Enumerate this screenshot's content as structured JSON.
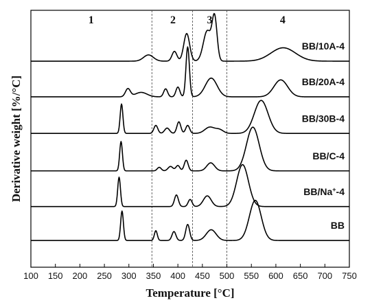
{
  "chart_data": {
    "type": "line",
    "xlabel": "Temperature [°C]",
    "ylabel": "Derivative weight [%/°C]",
    "xlim": [
      100,
      750
    ],
    "x_ticks": [
      100,
      150,
      200,
      250,
      300,
      350,
      400,
      450,
      500,
      550,
      600,
      650,
      700,
      750
    ],
    "y_ticks_shown": false,
    "grid": false,
    "legend": "none",
    "reference_lines": [
      {
        "x": 347,
        "style": "dashed"
      },
      {
        "x": 430,
        "style": "dashed"
      },
      {
        "x": 500,
        "style": "dashed"
      }
    ],
    "region_labels": [
      {
        "text": "1",
        "x": 223
      },
      {
        "text": "2",
        "x": 390
      },
      {
        "text": "3",
        "x": 465
      },
      {
        "text": "4",
        "x": 614
      }
    ],
    "series": [
      {
        "name": "BB/10A-4",
        "label_parts": [
          "BB/10A-4"
        ],
        "baseline": 11.55,
        "peaks": [
          [
            340,
            0.35,
            10
          ],
          [
            393,
            0.55,
            5
          ],
          [
            418,
            1.55,
            6
          ],
          [
            460,
            1.7,
            8
          ],
          [
            475,
            2.35,
            5
          ],
          [
            615,
            0.75,
            25
          ]
        ]
      },
      {
        "name": "BB/20A-4",
        "label_parts": [
          "BB/20A-4"
        ],
        "baseline": 9.55,
        "peaks": [
          [
            298,
            0.45,
            5
          ],
          [
            325,
            0.25,
            12
          ],
          [
            375,
            0.45,
            4
          ],
          [
            400,
            0.55,
            4
          ],
          [
            420,
            2.8,
            3.5
          ],
          [
            468,
            1.05,
            12
          ],
          [
            610,
            0.95,
            14
          ]
        ]
      },
      {
        "name": "BB/30B-4",
        "label_parts": [
          "BB/30B-4"
        ],
        "baseline": 7.5,
        "peaks": [
          [
            285,
            1.65,
            2.8
          ],
          [
            355,
            0.45,
            4
          ],
          [
            378,
            0.3,
            5
          ],
          [
            402,
            0.65,
            4
          ],
          [
            420,
            0.45,
            4
          ],
          [
            465,
            0.35,
            10
          ],
          [
            485,
            0.2,
            8
          ],
          [
            570,
            1.85,
            14
          ]
        ]
      },
      {
        "name": "BB/C-4",
        "label_parts": [
          "BB/C-4"
        ],
        "baseline": 5.4,
        "peaks": [
          [
            284,
            1.65,
            2.8
          ],
          [
            362,
            0.2,
            4
          ],
          [
            385,
            0.25,
            5
          ],
          [
            400,
            0.3,
            4
          ],
          [
            417,
            0.6,
            4
          ],
          [
            467,
            0.45,
            8
          ],
          [
            553,
            2.45,
            13
          ]
        ]
      },
      {
        "name": "BB/Na⁺-4",
        "label_parts": [
          "BB/Na",
          "+",
          "-4"
        ],
        "baseline": 3.4,
        "peaks": [
          [
            280,
            1.65,
            2.8
          ],
          [
            397,
            0.65,
            4
          ],
          [
            425,
            0.4,
            4
          ],
          [
            460,
            0.6,
            8
          ],
          [
            532,
            2.35,
            12
          ]
        ]
      },
      {
        "name": "BB",
        "label_parts": [
          "BB"
        ],
        "baseline": 1.5,
        "peaks": [
          [
            286,
            1.65,
            2.8
          ],
          [
            355,
            0.55,
            3
          ],
          [
            392,
            0.5,
            4
          ],
          [
            420,
            0.9,
            4
          ],
          [
            468,
            0.6,
            10
          ],
          [
            558,
            2.25,
            12
          ]
        ]
      }
    ]
  }
}
